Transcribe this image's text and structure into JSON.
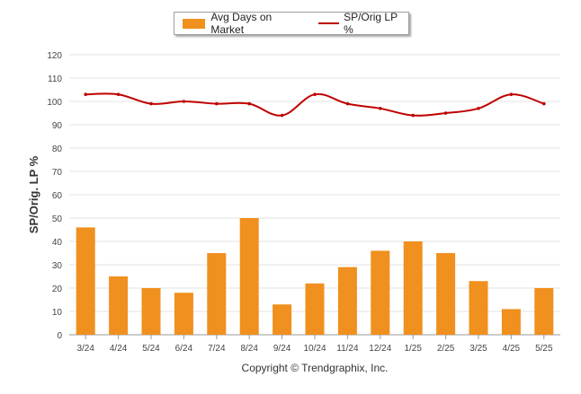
{
  "chart_data": {
    "type": "bar",
    "categories": [
      "3/24",
      "4/24",
      "5/24",
      "6/24",
      "7/24",
      "8/24",
      "9/24",
      "10/24",
      "11/24",
      "12/24",
      "1/25",
      "2/25",
      "3/25",
      "4/25",
      "5/25"
    ],
    "series": [
      {
        "name": "Avg Days on Market",
        "type": "bar",
        "color": "#f0901e",
        "values": [
          46,
          25,
          20,
          18,
          35,
          50,
          13,
          22,
          29,
          36,
          40,
          35,
          23,
          11,
          20
        ]
      },
      {
        "name": "SP/Orig LP %",
        "type": "line",
        "color": "#c00000",
        "values": [
          103,
          103,
          99,
          100,
          99,
          99,
          94,
          103,
          99,
          97,
          94,
          95,
          97,
          103,
          99
        ]
      }
    ],
    "ylabel": "SP/Orig. LP %",
    "ylim": [
      0,
      120
    ],
    "yticks": [
      0,
      10,
      20,
      30,
      40,
      50,
      60,
      70,
      80,
      90,
      100,
      110,
      120
    ],
    "grid": true,
    "legend_position": "top-center"
  },
  "footer": {
    "copyright": "Copyright © Trendgraphix, Inc."
  }
}
